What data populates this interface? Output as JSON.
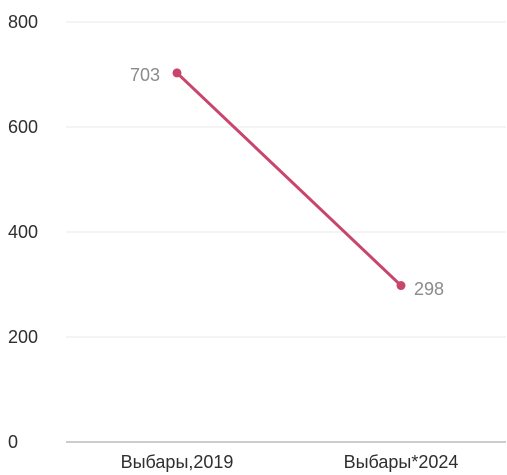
{
  "chart_data": {
    "type": "line",
    "title": "",
    "xlabel": "",
    "ylabel": "",
    "categories": [
      "Выбары,2019",
      "Выбары*2024"
    ],
    "series": [
      {
        "values": [
          703,
          298
        ],
        "color": "#c8456b"
      }
    ],
    "data_labels": [
      "703",
      "298"
    ],
    "y_ticks": [
      {
        "value": 800,
        "label": "800"
      },
      {
        "value": 600,
        "label": "600"
      },
      {
        "value": 400,
        "label": "400"
      },
      {
        "value": 200,
        "label": "200"
      },
      {
        "value": 0,
        "label": "0"
      }
    ],
    "ylim": [
      0,
      800
    ],
    "grid": true,
    "legend": "none",
    "colors": {
      "line": "#c8456b",
      "grid": "#e9e9e9",
      "axis": "#9a9a9a",
      "tick_text": "#2f2f2f",
      "data_label_text": "#8b8b8b"
    }
  }
}
